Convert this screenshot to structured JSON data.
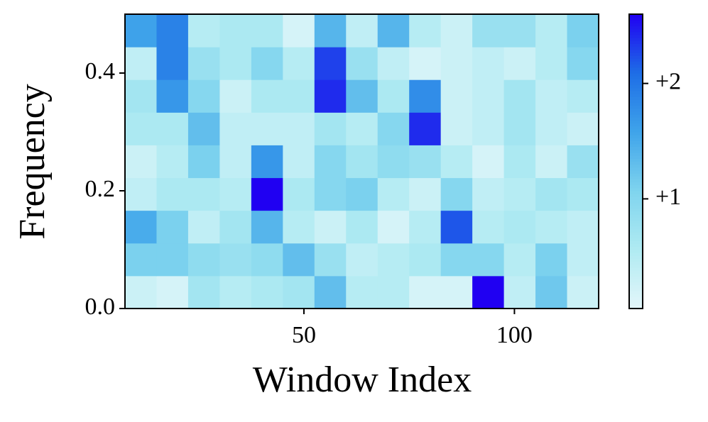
{
  "chart_data": {
    "type": "heatmap",
    "xlabel": "Window Index",
    "ylabel": "Frequency",
    "xbins": [
      7.5,
      15,
      22.5,
      30,
      37.5,
      45,
      52.5,
      60,
      67.5,
      75,
      82.5,
      90,
      97.5,
      105,
      112.5,
      120
    ],
    "ybins": [
      0,
      0.0556,
      0.1111,
      0.1667,
      0.2222,
      0.2778,
      0.3333,
      0.3889,
      0.4444,
      0.5
    ],
    "z": [
      [
        0.3,
        0.2,
        0.7,
        0.5,
        0.6,
        0.7,
        1.3,
        0.5,
        0.5,
        0.2,
        0.2,
        2.6,
        0.4,
        1.2,
        0.3
      ],
      [
        1.1,
        1.1,
        0.9,
        0.8,
        0.9,
        1.3,
        0.8,
        0.4,
        0.5,
        0.6,
        1.0,
        1.0,
        0.5,
        1.1,
        0.4
      ],
      [
        1.5,
        1.1,
        0.4,
        0.7,
        1.4,
        0.5,
        0.3,
        0.6,
        0.2,
        0.5,
        2.2,
        0.5,
        0.6,
        0.5,
        0.4
      ],
      [
        0.4,
        0.6,
        0.6,
        0.5,
        2.6,
        0.6,
        1.0,
        1.1,
        0.5,
        0.3,
        1.0,
        0.4,
        0.5,
        0.7,
        0.6
      ],
      [
        0.3,
        0.5,
        1.1,
        0.4,
        1.7,
        0.4,
        1.0,
        0.7,
        0.9,
        0.8,
        0.5,
        0.2,
        0.6,
        0.3,
        0.8
      ],
      [
        0.6,
        0.6,
        1.3,
        0.4,
        0.4,
        0.4,
        0.7,
        0.5,
        1.0,
        2.4,
        0.3,
        0.4,
        0.7,
        0.4,
        0.3
      ],
      [
        0.7,
        1.7,
        1.0,
        0.3,
        0.6,
        0.6,
        2.4,
        1.3,
        0.6,
        1.8,
        0.3,
        0.4,
        0.7,
        0.4,
        0.5
      ],
      [
        0.4,
        1.9,
        0.8,
        0.6,
        1.0,
        0.5,
        2.3,
        0.8,
        0.4,
        0.2,
        0.3,
        0.4,
        0.3,
        0.5,
        1.0
      ],
      [
        1.6,
        1.9,
        0.5,
        0.6,
        0.6,
        0.2,
        1.4,
        0.4,
        1.4,
        0.5,
        0.3,
        0.8,
        0.8,
        0.5,
        1.1
      ]
    ],
    "xlim": [
      7.5,
      120
    ],
    "ylim": [
      0,
      0.5
    ],
    "xticks": [
      50,
      100
    ],
    "yticks": [
      {
        "value": 0,
        "label": "0.0"
      },
      0.2,
      0.4
    ],
    "clim": [
      0.05,
      2.6
    ],
    "cticks": [
      {
        "value": 1,
        "label": "+1"
      },
      {
        "value": 2,
        "label": "+2"
      }
    ],
    "colormap": [
      "#e4f6fa",
      "#b0ebf2",
      "#7fd4ee",
      "#3fa4ea",
      "#1e6ee6",
      "#2000f2"
    ]
  }
}
